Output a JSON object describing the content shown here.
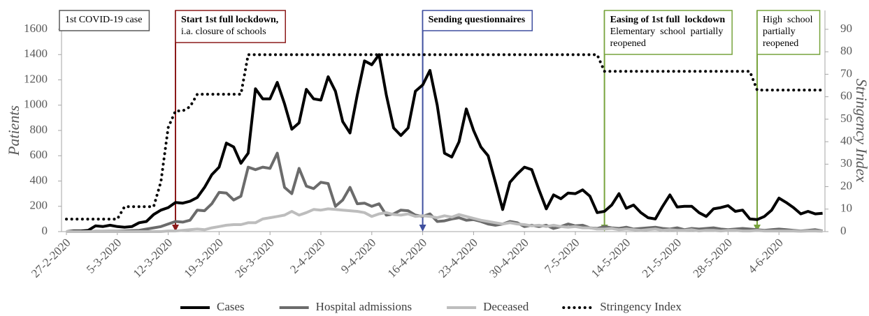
{
  "chart_data": {
    "type": "line",
    "categories": [
      "27-2-2020",
      null,
      null,
      null,
      null,
      null,
      null,
      "5-3-2020",
      null,
      null,
      null,
      null,
      null,
      null,
      "12-3-2020",
      null,
      null,
      null,
      null,
      null,
      null,
      "19-3-2020",
      null,
      null,
      null,
      null,
      null,
      null,
      "26-3-2020",
      null,
      null,
      null,
      null,
      null,
      null,
      "2-4-2020",
      null,
      null,
      null,
      null,
      null,
      null,
      "9-4-2020",
      null,
      null,
      null,
      null,
      null,
      null,
      "16-4-2020",
      null,
      null,
      null,
      null,
      null,
      null,
      "23-4-2020",
      null,
      null,
      null,
      null,
      null,
      null,
      "30-4-2020",
      null,
      null,
      null,
      null,
      null,
      null,
      "7-5-2020",
      null,
      null,
      null,
      null,
      null,
      null,
      "14-5-2020",
      null,
      null,
      null,
      null,
      null,
      null,
      "21-5-2020",
      null,
      null,
      null,
      null,
      null,
      null,
      "28-5-2020",
      null,
      null,
      null,
      null,
      null,
      null,
      "4-6-2020",
      null,
      null,
      null,
      null,
      null,
      null
    ],
    "ylabel": "Patients",
    "y2label": "Stringency Index",
    "ylim": [
      0,
      1600
    ],
    "yticks": [
      0,
      200,
      400,
      600,
      800,
      1000,
      1200,
      1400,
      1600
    ],
    "y2lim": [
      0,
      90
    ],
    "y2ticks": [
      0,
      10,
      20,
      30,
      40,
      50,
      60,
      70,
      80,
      90
    ],
    "series": [
      {
        "name": "Cases",
        "color": "#000000",
        "style": "solid",
        "values": [
          0,
          5,
          5,
          10,
          45,
          40,
          50,
          40,
          35,
          40,
          70,
          80,
          135,
          170,
          190,
          230,
          225,
          240,
          270,
          350,
          450,
          510,
          700,
          670,
          540,
          620,
          1130,
          1050,
          1050,
          1180,
          1010,
          810,
          860,
          1125,
          1050,
          1040,
          1225,
          1110,
          870,
          780,
          1080,
          1350,
          1320,
          1400,
          1080,
          820,
          760,
          820,
          1110,
          1160,
          1275,
          1000,
          620,
          590,
          710,
          970,
          800,
          670,
          600,
          390,
          175,
          390,
          455,
          510,
          490,
          330,
          180,
          290,
          260,
          305,
          300,
          330,
          280,
          150,
          160,
          210,
          300,
          185,
          210,
          150,
          110,
          100,
          200,
          290,
          195,
          200,
          200,
          150,
          120,
          180,
          190,
          205,
          160,
          170,
          100,
          95,
          120,
          170,
          265,
          230,
          190,
          140,
          160,
          140,
          145
        ]
      },
      {
        "name": "Hospital admissions",
        "color": "#6b6b6b",
        "style": "solid",
        "values": [
          0,
          0,
          0,
          0,
          2,
          2,
          3,
          3,
          5,
          8,
          10,
          20,
          30,
          40,
          60,
          80,
          75,
          90,
          170,
          165,
          220,
          310,
          305,
          250,
          280,
          510,
          490,
          510,
          500,
          620,
          350,
          300,
          500,
          360,
          340,
          390,
          380,
          200,
          250,
          350,
          220,
          225,
          200,
          220,
          130,
          140,
          170,
          165,
          130,
          120,
          140,
          80,
          85,
          100,
          110,
          90,
          95,
          80,
          60,
          50,
          60,
          80,
          70,
          40,
          50,
          40,
          50,
          25,
          40,
          60,
          45,
          50,
          30,
          25,
          40,
          30,
          25,
          35,
          20,
          25,
          30,
          35,
          25,
          20,
          30,
          15,
          25,
          20,
          25,
          30,
          20,
          15,
          20,
          25,
          20,
          15,
          10,
          15,
          20,
          15,
          10,
          5,
          10,
          15,
          5
        ]
      },
      {
        "name": "Deceased",
        "color": "#bdbdbd",
        "style": "solid",
        "values": [
          0,
          0,
          0,
          0,
          0,
          0,
          0,
          0,
          0,
          0,
          0,
          0,
          0,
          0,
          5,
          5,
          10,
          15,
          20,
          15,
          30,
          40,
          50,
          55,
          55,
          70,
          70,
          100,
          110,
          120,
          130,
          160,
          130,
          150,
          175,
          170,
          180,
          175,
          170,
          165,
          160,
          150,
          120,
          140,
          150,
          135,
          130,
          140,
          120,
          125,
          120,
          110,
          125,
          115,
          135,
          120,
          105,
          90,
          80,
          70,
          60,
          70,
          60,
          55,
          45,
          50,
          40,
          50,
          40,
          35,
          40,
          30,
          30,
          20,
          20,
          25,
          15,
          20,
          15,
          10,
          15,
          20,
          10,
          15,
          10,
          10,
          15,
          5,
          10,
          10,
          5,
          10,
          10,
          5,
          5,
          10,
          5,
          5,
          5,
          5,
          5,
          3,
          5,
          5,
          3
        ]
      },
      {
        "name": "Stringency Index",
        "color": "#000000",
        "style": "dotted",
        "axis": "y2",
        "values": [
          5.56,
          5.56,
          5.56,
          5.56,
          5.56,
          5.56,
          5.56,
          5.56,
          11.11,
          11.11,
          11.11,
          11.11,
          11.11,
          22.22,
          46.3,
          53.7,
          53.7,
          55.56,
          61.11,
          61.11,
          61.11,
          61.11,
          61.11,
          61.11,
          61.11,
          78.7,
          78.7,
          78.7,
          78.7,
          78.7,
          78.7,
          78.7,
          78.7,
          78.7,
          78.7,
          78.7,
          78.7,
          78.7,
          78.7,
          78.7,
          78.7,
          78.7,
          78.7,
          78.7,
          78.7,
          78.7,
          78.7,
          78.7,
          78.7,
          78.7,
          78.7,
          78.7,
          78.7,
          78.7,
          78.7,
          78.7,
          78.7,
          78.7,
          78.7,
          78.7,
          78.7,
          78.7,
          78.7,
          78.7,
          78.7,
          78.7,
          78.7,
          78.7,
          78.7,
          78.7,
          78.7,
          78.7,
          78.7,
          78.7,
          71.3,
          71.3,
          71.3,
          71.3,
          71.3,
          71.3,
          71.3,
          71.3,
          71.3,
          71.3,
          71.3,
          71.3,
          71.3,
          71.3,
          71.3,
          71.3,
          71.3,
          71.3,
          71.3,
          71.3,
          71.3,
          62.96,
          62.96,
          62.96,
          62.96,
          62.96,
          62.96,
          62.96,
          62.96,
          62.96,
          62.96
        ]
      }
    ],
    "annotations": [
      {
        "text": [
          "1st COVID-19 case"
        ],
        "color": "#595959"
      },
      {
        "title": "Start 1st full lockdown,",
        "text": [
          "i.a. closure of schools"
        ],
        "date": "13-3-2020",
        "color": "#8b1a1a"
      },
      {
        "title": "Sending questionnaires",
        "text": [],
        "date": "16-4-2020",
        "color": "#3f4f9f"
      },
      {
        "title": "Easing of 1st full  lockdown",
        "text": [
          "Elementary  school  partially",
          "reopened"
        ],
        "date": "11-5-2020",
        "color": "#77a33c"
      },
      {
        "text": [
          "High  school",
          "partially",
          "reopened"
        ],
        "date": "1-6-2020",
        "color": "#77a33c"
      }
    ],
    "legend": "bottom"
  }
}
